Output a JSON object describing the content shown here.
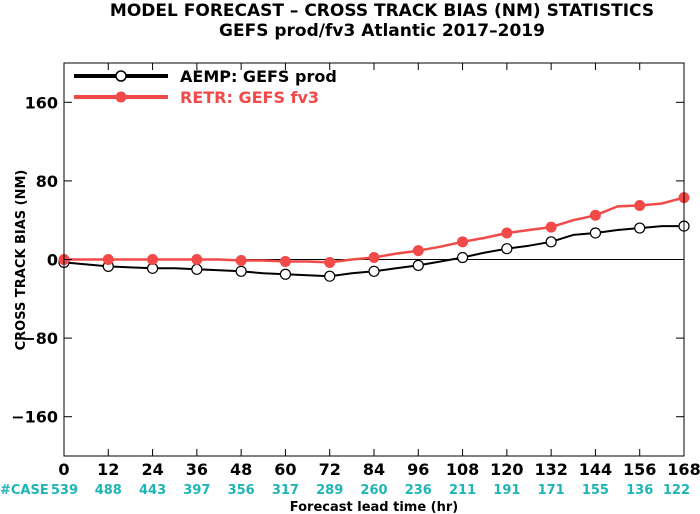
{
  "chart_data": {
    "type": "line",
    "title": "MODEL FORECAST – CROSS TRACK BIAS (NM) STATISTICS",
    "subtitle": "GEFS prod/fv3 Atlantic 2017–2019",
    "xlabel": "Forecast lead time (hr)",
    "ylabel": "CROSS TRACK BIAS (NM)",
    "xlim": [
      0,
      168
    ],
    "ylim": [
      -200,
      200
    ],
    "x_ticks": [
      "0",
      "12",
      "24",
      "36",
      "48",
      "60",
      "72",
      "84",
      "96",
      "108",
      "120",
      "132",
      "144",
      "156",
      "168"
    ],
    "y_ticks": [
      "160",
      "80",
      "0",
      "−80",
      "−160"
    ],
    "zero_line": true,
    "legend_position": "top-left",
    "x": [
      0,
      12,
      24,
      36,
      48,
      60,
      72,
      84,
      96,
      108,
      120,
      132,
      144,
      156,
      168
    ],
    "series": [
      {
        "name": "AEMP: GEFS prod",
        "color": "#000000",
        "marker": "open-circle",
        "values": [
          -3,
          -7,
          -9,
          -10,
          -12,
          -15,
          -17,
          -12,
          -6,
          2,
          11,
          18,
          27,
          32,
          34
        ],
        "line_x": [
          0,
          6,
          12,
          18,
          24,
          30,
          36,
          42,
          48,
          54,
          60,
          66,
          72,
          78,
          84,
          90,
          96,
          102,
          108,
          114,
          120,
          126,
          132,
          138,
          144,
          150,
          156,
          162,
          168
        ],
        "line_y": [
          -3,
          -5,
          -7,
          -8,
          -9,
          -9,
          -10,
          -11,
          -12,
          -14,
          -15,
          -16,
          -17,
          -14,
          -12,
          -9,
          -6,
          -2,
          2,
          7,
          11,
          14,
          18,
          25,
          27,
          30,
          32,
          34,
          34
        ]
      },
      {
        "name": "RETR: GEFS fv3",
        "color": "#f24949",
        "marker": "filled-circle",
        "values": [
          0,
          0,
          0,
          0,
          -1,
          -2,
          -3,
          2,
          9,
          18,
          27,
          33,
          45,
          55,
          63
        ],
        "line_x": [
          0,
          6,
          12,
          18,
          24,
          30,
          36,
          42,
          48,
          54,
          60,
          66,
          72,
          78,
          84,
          90,
          96,
          102,
          108,
          114,
          120,
          126,
          132,
          138,
          144,
          150,
          156,
          162,
          168
        ],
        "line_y": [
          0,
          0,
          0,
          0,
          0,
          0,
          0,
          0,
          -1,
          -1,
          -2,
          -2,
          -3,
          0,
          2,
          6,
          9,
          13,
          18,
          22,
          27,
          30,
          33,
          40,
          45,
          54,
          55,
          57,
          63
        ]
      }
    ],
    "case_label": "#CASE",
    "case_color": "#1fb5b5",
    "case_counts": [
      "539",
      "488",
      "443",
      "397",
      "356",
      "317",
      "289",
      "260",
      "236",
      "211",
      "191",
      "171",
      "155",
      "136",
      "122"
    ]
  }
}
